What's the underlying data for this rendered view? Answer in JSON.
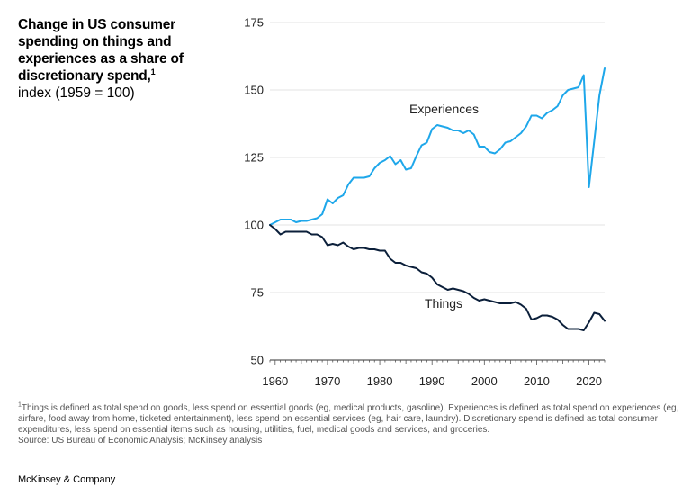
{
  "header": {
    "title": "Change in US consumer spending on things and experiences as a share of discretionary spend,",
    "title_footnote_mark": "1",
    "subtitle": "index (1959 = 100)"
  },
  "chart_data": {
    "type": "line",
    "xlim": [
      1959,
      2023
    ],
    "ylim": [
      50,
      175
    ],
    "x_ticks": [
      1960,
      1970,
      1980,
      1990,
      2000,
      2010,
      2020
    ],
    "y_ticks": [
      50,
      75,
      100,
      125,
      150,
      175
    ],
    "grid": true,
    "series": [
      {
        "name": "Experiences",
        "color": "#1ea7ea",
        "x": [
          1959,
          1960,
          1961,
          1962,
          1963,
          1964,
          1965,
          1966,
          1967,
          1968,
          1969,
          1970,
          1971,
          1972,
          1973,
          1974,
          1975,
          1976,
          1977,
          1978,
          1979,
          1980,
          1981,
          1982,
          1983,
          1984,
          1985,
          1986,
          1987,
          1988,
          1989,
          1990,
          1991,
          1992,
          1993,
          1994,
          1995,
          1996,
          1997,
          1998,
          1999,
          2000,
          2001,
          2002,
          2003,
          2004,
          2005,
          2006,
          2007,
          2008,
          2009,
          2010,
          2011,
          2012,
          2013,
          2014,
          2015,
          2016,
          2017,
          2018,
          2019,
          2020,
          2021,
          2022,
          2023
        ],
        "values": [
          100,
          101,
          102,
          102,
          102,
          101,
          101.5,
          101.5,
          102,
          102.5,
          104,
          109.5,
          108,
          110,
          111,
          115,
          117.5,
          117.5,
          117.5,
          118,
          121,
          123,
          124,
          125.5,
          122.5,
          124,
          120.5,
          121,
          125.5,
          129.5,
          130.5,
          135.5,
          137,
          136.5,
          136,
          135,
          135,
          134,
          135,
          133.5,
          129,
          129,
          127,
          126.5,
          128,
          130.5,
          131,
          132.5,
          134,
          136.5,
          140.5,
          140.5,
          139.5,
          141.5,
          142.5,
          144,
          148,
          150,
          150.5,
          151,
          155.5,
          114,
          131,
          148,
          158
        ]
      },
      {
        "name": "Things",
        "color": "#0b1f3a",
        "x": [
          1959,
          1960,
          1961,
          1962,
          1963,
          1964,
          1965,
          1966,
          1967,
          1968,
          1969,
          1970,
          1971,
          1972,
          1973,
          1974,
          1975,
          1976,
          1977,
          1978,
          1979,
          1980,
          1981,
          1982,
          1983,
          1984,
          1985,
          1986,
          1987,
          1988,
          1989,
          1990,
          1991,
          1992,
          1993,
          1994,
          1995,
          1996,
          1997,
          1998,
          1999,
          2000,
          2001,
          2002,
          2003,
          2004,
          2005,
          2006,
          2007,
          2008,
          2009,
          2010,
          2011,
          2012,
          2013,
          2014,
          2015,
          2016,
          2017,
          2018,
          2019,
          2020,
          2021,
          2022,
          2023
        ],
        "values": [
          100,
          98.5,
          96.5,
          97.5,
          97.5,
          97.5,
          97.5,
          97.5,
          96.5,
          96.5,
          95.5,
          92.5,
          93,
          92.5,
          93.5,
          92,
          91,
          91.5,
          91.5,
          91,
          91,
          90.5,
          90.5,
          87.5,
          86,
          86,
          85,
          84.5,
          84,
          82.5,
          82,
          80.5,
          78,
          77,
          76,
          76.5,
          76,
          75.5,
          74.5,
          73,
          72,
          72.5,
          72,
          71.5,
          71,
          71,
          71,
          71.5,
          70.5,
          69,
          65,
          65.5,
          66.5,
          66.5,
          66,
          65,
          63,
          61.5,
          61.5,
          61.5,
          61,
          64,
          67.5,
          67,
          64.5
        ]
      }
    ],
    "labels": {
      "experiences": "Experiences",
      "things": "Things"
    }
  },
  "footnote": {
    "mark": "1",
    "text": "Things is defined as total spend on goods, less spend on essential goods (eg, medical products, gasoline). Experiences is defined as total spend on experiences (eg, airfare, food away from home, ticketed entertainment), less spend on essential services (eg, hair care, laundry). Discretionary spend is defined as total consumer expenditures, less spend on essential items such as housing, utilities, fuel, medical goods and services, and groceries.",
    "source": "Source: US Bureau of Economic Analysis; McKinsey analysis"
  },
  "brand": "McKinsey & Company"
}
